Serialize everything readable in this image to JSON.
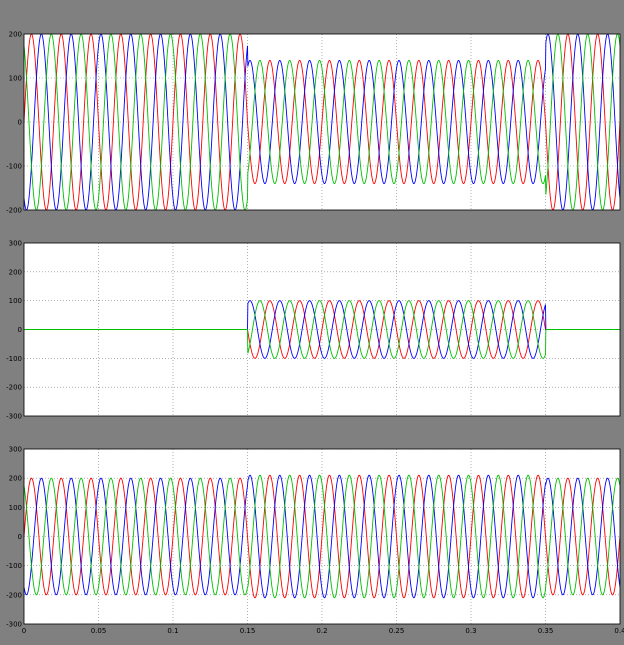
{
  "figure": {
    "background_color": "#808080",
    "axes_background_color": "#ffffff",
    "grid_line_color": "#808080",
    "grid": true
  },
  "chart_data": [
    {
      "type": "line",
      "title": "",
      "xlabel": "",
      "ylabel": "",
      "xlim": [
        0,
        0.4
      ],
      "ylim": [
        -200,
        200
      ],
      "x_ticks": [
        0,
        0.05,
        0.1,
        0.15,
        0.2,
        0.25,
        0.3,
        0.35,
        0.4
      ],
      "x_tick_labels": [],
      "y_ticks": [
        -200,
        -100,
        0,
        100,
        200
      ],
      "y_tick_labels": [
        "-200",
        "-100",
        "0",
        "100",
        "200"
      ],
      "frequency_hz": 50,
      "segments": [
        {
          "t_start": 0,
          "t_end": 0.15,
          "amplitude": 200
        },
        {
          "t_start": 0.15,
          "t_end": 0.35,
          "amplitude": 140
        },
        {
          "t_start": 0.35,
          "t_end": 0.4,
          "amplitude": 200
        }
      ],
      "series": [
        {
          "color": "#ff0000",
          "phase_deg": 0
        },
        {
          "color": "#0000ff",
          "phase_deg": -120
        },
        {
          "color": "#00c000",
          "phase_deg": 120
        }
      ]
    },
    {
      "type": "line",
      "title": "",
      "xlabel": "",
      "ylabel": "",
      "xlim": [
        0,
        0.4
      ],
      "ylim": [
        -300,
        300
      ],
      "x_ticks": [
        0,
        0.05,
        0.1,
        0.15,
        0.2,
        0.25,
        0.3,
        0.35,
        0.4
      ],
      "x_tick_labels": [],
      "y_ticks": [
        -300,
        -200,
        -100,
        0,
        100,
        200,
        300
      ],
      "y_tick_labels": [
        "-300",
        "-200",
        "-100",
        "0",
        "100",
        "200",
        "300"
      ],
      "frequency_hz": 50,
      "segments": [
        {
          "t_start": 0,
          "t_end": 0.15,
          "amplitude": 0
        },
        {
          "t_start": 0.15,
          "t_end": 0.35,
          "amplitude": 100
        },
        {
          "t_start": 0.35,
          "t_end": 0.4,
          "amplitude": 0
        }
      ],
      "series": [
        {
          "color": "#ff0000",
          "phase_deg": 0
        },
        {
          "color": "#0000ff",
          "phase_deg": -120
        },
        {
          "color": "#00c000",
          "phase_deg": 120
        }
      ]
    },
    {
      "type": "line",
      "title": "",
      "xlabel": "",
      "ylabel": "",
      "xlim": [
        0,
        0.4
      ],
      "ylim": [
        -300,
        300
      ],
      "x_ticks": [
        0,
        0.05,
        0.1,
        0.15,
        0.2,
        0.25,
        0.3,
        0.35,
        0.4
      ],
      "x_tick_labels": [
        "0",
        "0.05",
        "0.1",
        "0.15",
        "0.2",
        "0.25",
        "0.3",
        "0.35",
        "0.4"
      ],
      "y_ticks": [
        -300,
        -200,
        -100,
        0,
        100,
        200,
        300
      ],
      "y_tick_labels": [
        "-300",
        "-200",
        "-100",
        "0",
        "100",
        "200",
        "300"
      ],
      "frequency_hz": 50,
      "segments": [
        {
          "t_start": 0,
          "t_end": 0.15,
          "amplitude": 200
        },
        {
          "t_start": 0.15,
          "t_end": 0.35,
          "amplitude": 210
        },
        {
          "t_start": 0.35,
          "t_end": 0.4,
          "amplitude": 200
        }
      ],
      "series": [
        {
          "color": "#ff0000",
          "phase_deg": 0
        },
        {
          "color": "#0000ff",
          "phase_deg": -120
        },
        {
          "color": "#00c000",
          "phase_deg": 120
        }
      ]
    }
  ]
}
